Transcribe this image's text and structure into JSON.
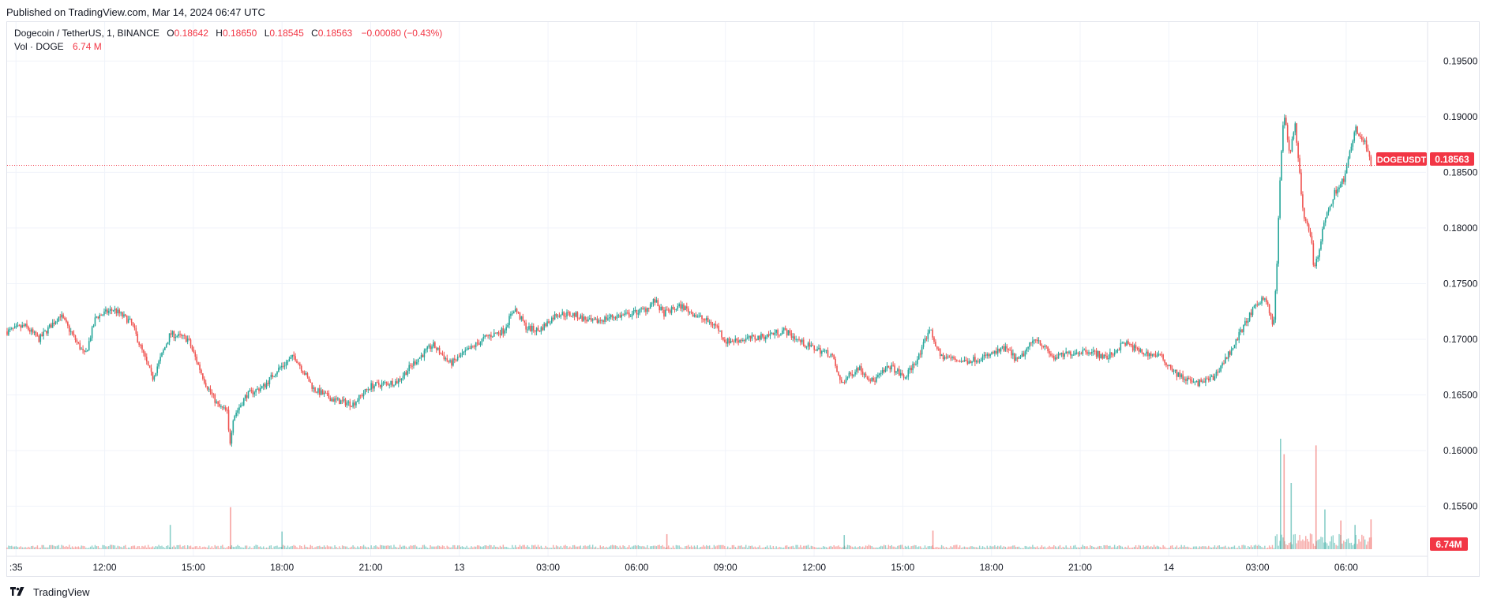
{
  "published": "Published on TradingView.com, Mar 14, 2024 06:47 UTC",
  "legend": {
    "symbol": "Dogecoin / TetherUS, 1, BINANCE",
    "o_label": "O",
    "o_value": "0.18642",
    "h_label": "H",
    "h_value": "0.18650",
    "l_label": "L",
    "l_value": "0.18545",
    "c_label": "C",
    "c_value": "0.18563",
    "change": "−0.00080 (−0.43%)",
    "vol_label": "Vol · DOGE",
    "vol_value": "6.74 M"
  },
  "price_tag": {
    "symbol": "DOGEUSDT",
    "value": "0.18563"
  },
  "vol_tag": "6.74M",
  "footer_brand": "TradingView",
  "colors": {
    "up": "#26a69a",
    "down": "#ef5350",
    "last_price": "#f23645",
    "grid": "#f0f3fa"
  },
  "chart_data": {
    "type": "candlestick",
    "symbol": "DOGEUSDT",
    "interval": "1 minute",
    "y_axis": {
      "ticks": [
        "0.19500",
        "0.19000",
        "0.18500",
        "0.18000",
        "0.17500",
        "0.17000",
        "0.16500",
        "0.16000",
        "0.15500"
      ],
      "range": [
        0.1505,
        0.1985
      ],
      "position": "right"
    },
    "x_axis": {
      "ticks": [
        ":35",
        "12:00",
        "15:00",
        "18:00",
        "21:00",
        "13",
        "03:00",
        "06:00",
        "09:00",
        "12:00",
        "15:00",
        "18:00",
        "21:00",
        "14",
        "03:00",
        "06:00"
      ]
    },
    "last_price": 0.18563,
    "price_path": [
      {
        "t": 0,
        "p": 0.1707
      },
      {
        "t": 1,
        "p": 0.1712
      },
      {
        "t": 1.8,
        "p": 0.17
      },
      {
        "t": 3,
        "p": 0.1722
      },
      {
        "t": 4.4,
        "p": 0.1685
      },
      {
        "t": 5,
        "p": 0.172
      },
      {
        "t": 6,
        "p": 0.1727
      },
      {
        "t": 7,
        "p": 0.1715
      },
      {
        "t": 8.2,
        "p": 0.1665
      },
      {
        "t": 9.2,
        "p": 0.1705
      },
      {
        "t": 10.2,
        "p": 0.17
      },
      {
        "t": 11.2,
        "p": 0.166
      },
      {
        "t": 11.9,
        "p": 0.164
      },
      {
        "t": 12.4,
        "p": 0.1635
      },
      {
        "t": 12.55,
        "p": 0.1605
      },
      {
        "t": 12.75,
        "p": 0.163
      },
      {
        "t": 13.5,
        "p": 0.165
      },
      {
        "t": 14.5,
        "p": 0.1658
      },
      {
        "t": 15.2,
        "p": 0.1672
      },
      {
        "t": 16.2,
        "p": 0.1685
      },
      {
        "t": 17.3,
        "p": 0.1655
      },
      {
        "t": 18.5,
        "p": 0.1645
      },
      {
        "t": 19.5,
        "p": 0.1642
      },
      {
        "t": 20.5,
        "p": 0.1658
      },
      {
        "t": 22,
        "p": 0.1662
      },
      {
        "t": 23,
        "p": 0.168
      },
      {
        "t": 24,
        "p": 0.1695
      },
      {
        "t": 25,
        "p": 0.1678
      },
      {
        "t": 26,
        "p": 0.169
      },
      {
        "t": 27,
        "p": 0.1702
      },
      {
        "t": 28,
        "p": 0.1708
      },
      {
        "t": 28.6,
        "p": 0.1728
      },
      {
        "t": 29.3,
        "p": 0.171
      },
      {
        "t": 30,
        "p": 0.1708
      },
      {
        "t": 31,
        "p": 0.1723
      },
      {
        "t": 32,
        "p": 0.1722
      },
      {
        "t": 33,
        "p": 0.1715
      },
      {
        "t": 34,
        "p": 0.172
      },
      {
        "t": 35,
        "p": 0.1722
      },
      {
        "t": 36,
        "p": 0.1727
      },
      {
        "t": 36.5,
        "p": 0.1735
      },
      {
        "t": 37,
        "p": 0.1723
      },
      {
        "t": 38,
        "p": 0.173
      },
      {
        "t": 39,
        "p": 0.172
      },
      {
        "t": 40,
        "p": 0.1712
      },
      {
        "t": 40.5,
        "p": 0.1698
      },
      {
        "t": 41.5,
        "p": 0.17
      },
      {
        "t": 42.5,
        "p": 0.1702
      },
      {
        "t": 43.8,
        "p": 0.1708
      },
      {
        "t": 45,
        "p": 0.1695
      },
      {
        "t": 46.5,
        "p": 0.1686
      },
      {
        "t": 47,
        "p": 0.166
      },
      {
        "t": 48,
        "p": 0.1675
      },
      {
        "t": 48.8,
        "p": 0.1662
      },
      {
        "t": 49.8,
        "p": 0.1676
      },
      {
        "t": 50.6,
        "p": 0.1665
      },
      {
        "t": 51.5,
        "p": 0.1687
      },
      {
        "t": 52,
        "p": 0.171
      },
      {
        "t": 52.6,
        "p": 0.1685
      },
      {
        "t": 54,
        "p": 0.168
      },
      {
        "t": 55.3,
        "p": 0.1685
      },
      {
        "t": 56.3,
        "p": 0.1692
      },
      {
        "t": 57,
        "p": 0.168
      },
      {
        "t": 58,
        "p": 0.1702
      },
      {
        "t": 59,
        "p": 0.1683
      },
      {
        "t": 60,
        "p": 0.1688
      },
      {
        "t": 61,
        "p": 0.169
      },
      {
        "t": 62,
        "p": 0.1683
      },
      {
        "t": 63,
        "p": 0.1697
      },
      {
        "t": 64,
        "p": 0.1688
      },
      {
        "t": 65,
        "p": 0.1685
      },
      {
        "t": 66,
        "p": 0.1668
      },
      {
        "t": 67,
        "p": 0.166
      },
      {
        "t": 68,
        "p": 0.1665
      },
      {
        "t": 69,
        "p": 0.169
      },
      {
        "t": 70,
        "p": 0.172
      },
      {
        "t": 70.9,
        "p": 0.174
      },
      {
        "t": 71.4,
        "p": 0.171
      },
      {
        "t": 71.6,
        "p": 0.177
      },
      {
        "t": 71.8,
        "p": 0.186
      },
      {
        "t": 72.0,
        "p": 0.1905
      },
      {
        "t": 72.3,
        "p": 0.1865
      },
      {
        "t": 72.6,
        "p": 0.1895
      },
      {
        "t": 73.1,
        "p": 0.181
      },
      {
        "t": 73.5,
        "p": 0.1795
      },
      {
        "t": 73.7,
        "p": 0.176
      },
      {
        "t": 74.2,
        "p": 0.18
      },
      {
        "t": 74.8,
        "p": 0.183
      },
      {
        "t": 75.4,
        "p": 0.1845
      },
      {
        "t": 76.0,
        "p": 0.189
      },
      {
        "t": 76.6,
        "p": 0.1875
      },
      {
        "t": 76.9,
        "p": 0.18563
      }
    ],
    "volume_spikes": [
      {
        "t": 9.2,
        "v": 5.5
      },
      {
        "t": 12.6,
        "v": 9.5
      },
      {
        "t": 15.5,
        "v": 4.0
      },
      {
        "t": 37.2,
        "v": 3.4
      },
      {
        "t": 47.2,
        "v": 3.2
      },
      {
        "t": 52.2,
        "v": 4.2
      },
      {
        "t": 71.8,
        "v": 25.0
      },
      {
        "t": 72.0,
        "v": 21.5
      },
      {
        "t": 72.4,
        "v": 15.0
      },
      {
        "t": 73.8,
        "v": 23.5
      },
      {
        "t": 74.3,
        "v": 9.0
      },
      {
        "t": 75.2,
        "v": 6.5
      },
      {
        "t": 76.0,
        "v": 5.5
      },
      {
        "t": 76.9,
        "v": 6.74
      }
    ]
  }
}
